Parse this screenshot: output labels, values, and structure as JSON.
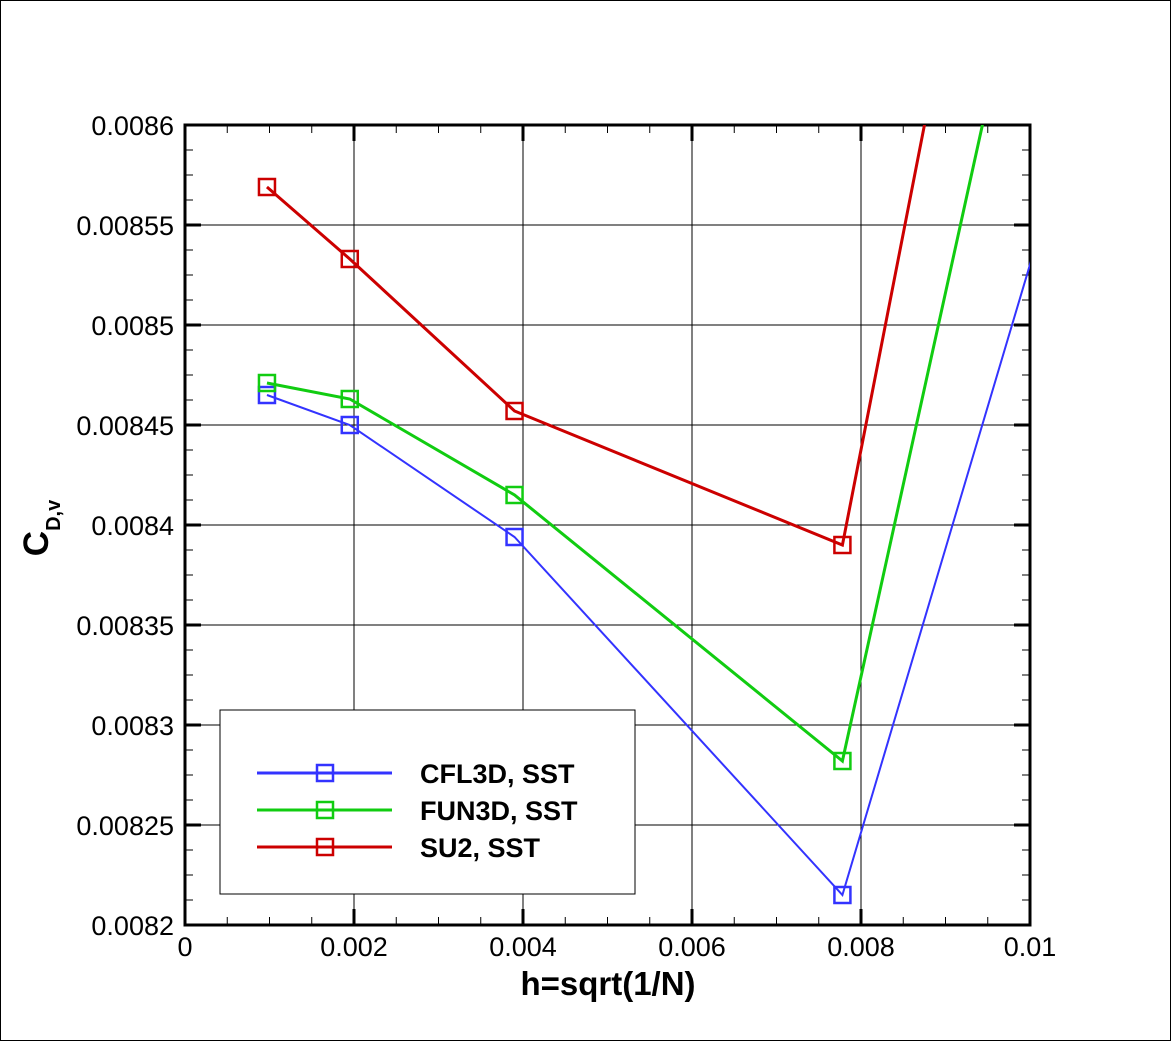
{
  "chart_data": {
    "type": "line",
    "title": "",
    "xlabel": "h=sqrt(1/N)",
    "ylabel_main": "C",
    "ylabel_sub": "D,v",
    "xlim": [
      0,
      0.01
    ],
    "ylim": [
      0.0082,
      0.0086
    ],
    "grid": true,
    "legend_position": "bottom-left",
    "x_ticks": [
      {
        "value": 0,
        "label": "0"
      },
      {
        "value": 0.002,
        "label": "0.002"
      },
      {
        "value": 0.004,
        "label": "0.004"
      },
      {
        "value": 0.006,
        "label": "0.006"
      },
      {
        "value": 0.008,
        "label": "0.008"
      },
      {
        "value": 0.01,
        "label": "0.01"
      }
    ],
    "y_ticks": [
      {
        "value": 0.0082,
        "label": "0.0082"
      },
      {
        "value": 0.00825,
        "label": "0.00825"
      },
      {
        "value": 0.0083,
        "label": "0.0083"
      },
      {
        "value": 0.00835,
        "label": "0.00835"
      },
      {
        "value": 0.0084,
        "label": "0.0084"
      },
      {
        "value": 0.00845,
        "label": "0.00845"
      },
      {
        "value": 0.0085,
        "label": "0.0085"
      },
      {
        "value": 0.00855,
        "label": "0.00855"
      },
      {
        "value": 0.0086,
        "label": "0.0086"
      }
    ],
    "series": [
      {
        "name": "CFL3D, SST",
        "color": "#3333ff",
        "x": [
          0.00097,
          0.00195,
          0.0039,
          0.00778
        ],
        "y": [
          0.008465,
          0.00845,
          0.008394,
          0.008215
        ],
        "extension": [
          0.0119,
          0.0088
        ]
      },
      {
        "name": "FUN3D, SST",
        "color": "#11cc11",
        "x": [
          0.00097,
          0.00195,
          0.0039,
          0.00778
        ],
        "y": [
          0.008471,
          0.008463,
          0.008415,
          0.008282
        ],
        "extension": [
          0.011,
          0.0089
        ]
      },
      {
        "name": "SU2, SST",
        "color": "#cc0000",
        "x": [
          0.00097,
          0.00195,
          0.0039,
          0.00778
        ],
        "y": [
          0.008569,
          0.008533,
          0.008457,
          0.00839
        ],
        "extension": [
          0.0106,
          0.009
        ]
      }
    ]
  }
}
